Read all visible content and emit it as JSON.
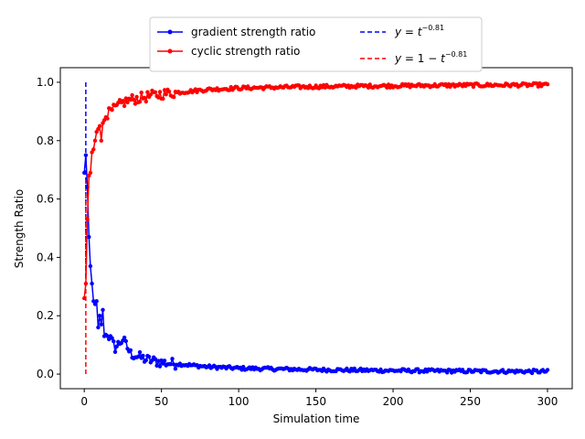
{
  "chart_data": {
    "type": "line",
    "title": "",
    "xlabel": "Simulation time",
    "ylabel": "Strength Ratio",
    "xlim": [
      -15.5,
      316
    ],
    "ylim": [
      -0.05,
      1.05
    ],
    "xticks": [
      0,
      50,
      100,
      150,
      200,
      250,
      300
    ],
    "xtick_labels": [
      "0",
      "50",
      "100",
      "150",
      "200",
      "250",
      "300"
    ],
    "yticks": [
      0.0,
      0.2,
      0.4,
      0.6,
      0.8,
      1.0
    ],
    "ytick_labels": [
      "0.0",
      "0.2",
      "0.4",
      "0.6",
      "0.8",
      "1.0"
    ],
    "grid": false,
    "legend_position": "upper-center-outside",
    "series": [
      {
        "name": "gradient strength ratio",
        "color": "#0000ff",
        "style": "solid",
        "marker": "dot",
        "model": "decay",
        "x_start": 0,
        "x_end": 300,
        "n_points": 300,
        "points": [
          [
            0,
            0.69
          ],
          [
            1,
            0.75
          ],
          [
            2,
            0.64
          ],
          [
            3,
            0.47
          ],
          [
            4,
            0.37
          ],
          [
            5,
            0.31
          ],
          [
            6,
            0.25
          ],
          [
            7,
            0.24
          ],
          [
            8,
            0.25
          ],
          [
            9,
            0.16
          ],
          [
            10,
            0.2
          ],
          [
            11,
            0.17
          ],
          [
            12,
            0.22
          ],
          [
            13,
            0.13
          ],
          [
            15,
            0.14
          ],
          [
            20,
            0.09
          ],
          [
            25,
            0.12
          ],
          [
            30,
            0.07
          ],
          [
            40,
            0.05
          ],
          [
            50,
            0.04
          ],
          [
            60,
            0.035
          ],
          [
            70,
            0.03
          ],
          [
            80,
            0.025
          ],
          [
            100,
            0.02
          ],
          [
            120,
            0.018
          ],
          [
            150,
            0.015
          ],
          [
            200,
            0.012
          ],
          [
            250,
            0.01
          ],
          [
            300,
            0.009
          ]
        ]
      },
      {
        "name": "cyclic strength ratio",
        "color": "#ff0000",
        "style": "solid",
        "marker": "dot",
        "model": "complement",
        "x_start": 0,
        "x_end": 300,
        "n_points": 300,
        "points": [
          [
            0,
            0.26
          ],
          [
            1,
            0.31
          ],
          [
            2,
            0.53
          ],
          [
            3,
            0.68
          ],
          [
            4,
            0.69
          ],
          [
            5,
            0.76
          ],
          [
            6,
            0.77
          ],
          [
            7,
            0.8
          ],
          [
            8,
            0.83
          ],
          [
            9,
            0.84
          ],
          [
            10,
            0.85
          ],
          [
            11,
            0.8
          ],
          [
            12,
            0.86
          ],
          [
            15,
            0.89
          ],
          [
            20,
            0.91
          ],
          [
            25,
            0.93
          ],
          [
            30,
            0.94
          ],
          [
            40,
            0.95
          ],
          [
            50,
            0.96
          ],
          [
            60,
            0.965
          ],
          [
            70,
            0.97
          ],
          [
            80,
            0.975
          ],
          [
            100,
            0.98
          ],
          [
            120,
            0.982
          ],
          [
            150,
            0.985
          ],
          [
            200,
            0.988
          ],
          [
            250,
            0.99
          ],
          [
            300,
            0.991
          ]
        ]
      },
      {
        "name": "y = t^{-0.81}",
        "label_main": "y = t",
        "label_exponent": "−0.81",
        "color": "#0000ff",
        "style": "dashed",
        "marker": "none",
        "x": [
          1.0,
          1.2,
          1.5,
          2,
          3,
          5,
          10,
          20,
          50
        ],
        "y": [
          1.0,
          0.863,
          0.72,
          0.57,
          0.41,
          0.27,
          0.155,
          0.088,
          0.042
        ],
        "visible_x_range": [
          1.0,
          1.0
        ]
      },
      {
        "name": "y = 1 - t^{-0.81}",
        "label_main": "y = 1 − t",
        "label_exponent": "−0.81",
        "color": "#ff0000",
        "style": "dashed",
        "marker": "none",
        "x": [
          1.0,
          1.2,
          1.5,
          2,
          3,
          5,
          10,
          20,
          50
        ],
        "y": [
          0.0,
          0.137,
          0.28,
          0.43,
          0.59,
          0.73,
          0.845,
          0.912,
          0.958
        ],
        "visible_x_range": [
          1.0,
          1.0
        ]
      }
    ]
  }
}
